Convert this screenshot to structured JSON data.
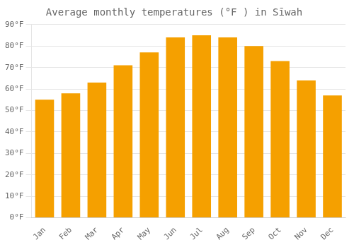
{
  "chart_data": {
    "type": "bar",
    "title": "Average monthly temperatures (°F ) in Sīwah",
    "categories": [
      "Jan",
      "Feb",
      "Mar",
      "Apr",
      "May",
      "Jun",
      "Jul",
      "Aug",
      "Sep",
      "Oct",
      "Nov",
      "Dec"
    ],
    "values": [
      55,
      58,
      63,
      71,
      77,
      84,
      85,
      84,
      80,
      73,
      64,
      57
    ],
    "color": "#F5A000",
    "ylim": [
      0,
      90
    ],
    "yticks": [
      {
        "value": 0,
        "label": "0°F"
      },
      {
        "value": 10,
        "label": "10°F"
      },
      {
        "value": 20,
        "label": "20°F"
      },
      {
        "value": 30,
        "label": "30°F"
      },
      {
        "value": 40,
        "label": "40°F"
      },
      {
        "value": 50,
        "label": "50°F"
      },
      {
        "value": 60,
        "label": "60°F"
      },
      {
        "value": 70,
        "label": "70°F"
      },
      {
        "value": 80,
        "label": "80°F"
      },
      {
        "value": 90,
        "label": "90°F"
      }
    ],
    "grid": true
  }
}
